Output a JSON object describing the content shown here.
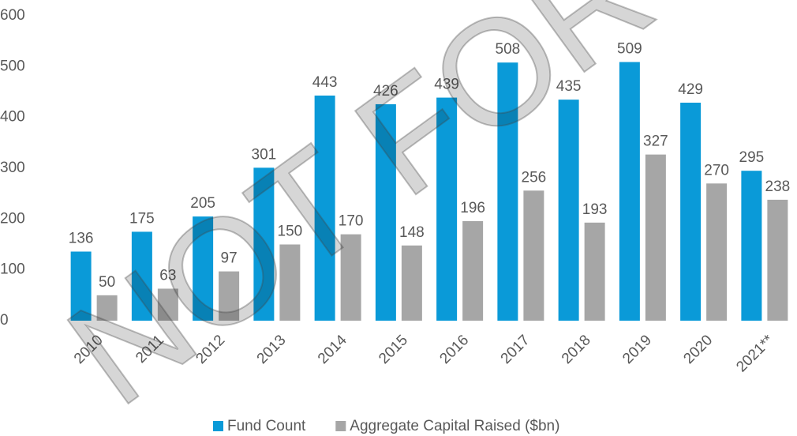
{
  "chart_data": {
    "type": "bar",
    "categories": [
      "2010",
      "2011",
      "2012",
      "2013",
      "2014",
      "2015",
      "2016",
      "2017",
      "2018",
      "2019",
      "2020",
      "2021**"
    ],
    "series": [
      {
        "name": "Fund Count",
        "color": "#0a9ad8",
        "values": [
          136,
          175,
          205,
          301,
          443,
          426,
          439,
          508,
          435,
          509,
          429,
          295
        ]
      },
      {
        "name": "Aggregate Capital Raised ($bn)",
        "color": "#a6a6a6",
        "values": [
          50,
          63,
          97,
          150,
          170,
          148,
          196,
          256,
          193,
          327,
          270,
          238
        ]
      }
    ],
    "ylim": [
      0,
      600
    ],
    "yticks": [
      0,
      100,
      200,
      300,
      400,
      500,
      600
    ],
    "grid": false,
    "legend": "bottom",
    "watermark": "NOT FOR D"
  }
}
